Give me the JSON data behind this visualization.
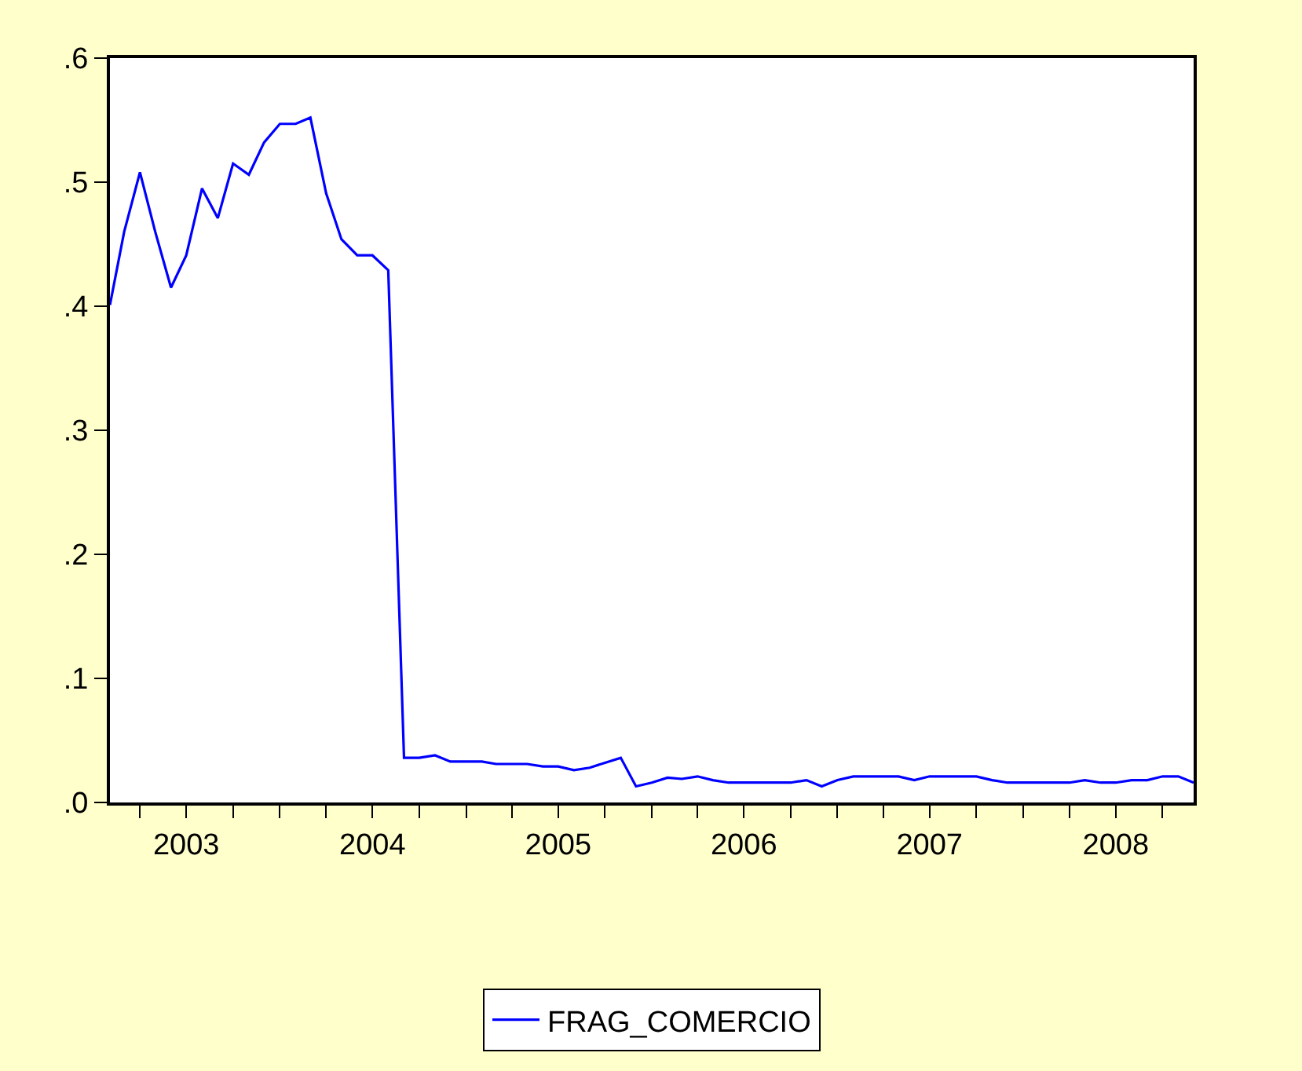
{
  "chart_data": {
    "type": "line",
    "legend": "bottom",
    "marker": "none",
    "line_style": "solid",
    "x": [
      "2003-02",
      "2003-03",
      "2003-04",
      "2003-05",
      "2003-06",
      "2003-07",
      "2003-08",
      "2003-09",
      "2003-10",
      "2003-11",
      "2003-12",
      "2004-01",
      "2004-02",
      "2004-03",
      "2004-04",
      "2004-05",
      "2004-06",
      "2004-07",
      "2004-08",
      "2004-09",
      "2004-10",
      "2004-11",
      "2004-12",
      "2005-01",
      "2005-02",
      "2005-03",
      "2005-04",
      "2005-05",
      "2005-06",
      "2005-07",
      "2005-08",
      "2005-09",
      "2005-10",
      "2005-11",
      "2005-12",
      "2006-01",
      "2006-02",
      "2006-03",
      "2006-04",
      "2006-05",
      "2006-06",
      "2006-07",
      "2006-08",
      "2006-09",
      "2006-10",
      "2006-11",
      "2006-12",
      "2007-01",
      "2007-02",
      "2007-03",
      "2007-04",
      "2007-05",
      "2007-06",
      "2007-07",
      "2007-08",
      "2007-09",
      "2007-10",
      "2007-11",
      "2007-12",
      "2008-01",
      "2008-02",
      "2008-03",
      "2008-04",
      "2008-05",
      "2008-06",
      "2008-07",
      "2008-08",
      "2008-09",
      "2008-10",
      "2008-11",
      "2008-12"
    ],
    "series": [
      {
        "name": "FRAG_COMERCIO",
        "color": "#0000ff",
        "values": [
          0.401,
          0.46,
          0.508,
          0.46,
          0.415,
          0.441,
          0.495,
          0.471,
          0.515,
          0.506,
          0.532,
          0.547,
          0.547,
          0.552,
          0.491,
          0.454,
          0.441,
          0.441,
          0.429,
          0.036,
          0.036,
          0.038,
          0.033,
          0.033,
          0.033,
          0.031,
          0.031,
          0.031,
          0.029,
          0.029,
          0.026,
          0.028,
          0.032,
          0.036,
          0.013,
          0.016,
          0.02,
          0.019,
          0.021,
          0.018,
          0.016,
          0.016,
          0.016,
          0.016,
          0.016,
          0.018,
          0.013,
          0.018,
          0.021,
          0.021,
          0.021,
          0.021,
          0.018,
          0.021,
          0.021,
          0.021,
          0.021,
          0.018,
          0.016,
          0.016,
          0.016,
          0.016,
          0.016,
          0.018,
          0.016,
          0.016,
          0.018,
          0.018,
          0.021,
          0.021,
          0.016
        ]
      }
    ],
    "xlim": [
      "2003-02",
      "2008-12"
    ],
    "xticks": [
      {
        "value": "2003-04",
        "label": null
      },
      {
        "value": "2003-07",
        "label": "2003"
      },
      {
        "value": "2003-10",
        "label": null
      },
      {
        "value": "2004-01",
        "label": null
      },
      {
        "value": "2004-04",
        "label": null
      },
      {
        "value": "2004-07",
        "label": "2004"
      },
      {
        "value": "2004-10",
        "label": null
      },
      {
        "value": "2005-01",
        "label": null
      },
      {
        "value": "2005-04",
        "label": null
      },
      {
        "value": "2005-07",
        "label": "2005"
      },
      {
        "value": "2005-10",
        "label": null
      },
      {
        "value": "2006-01",
        "label": null
      },
      {
        "value": "2006-04",
        "label": null
      },
      {
        "value": "2006-07",
        "label": "2006"
      },
      {
        "value": "2006-10",
        "label": null
      },
      {
        "value": "2007-01",
        "label": null
      },
      {
        "value": "2007-04",
        "label": null
      },
      {
        "value": "2007-07",
        "label": "2007"
      },
      {
        "value": "2007-10",
        "label": null
      },
      {
        "value": "2008-01",
        "label": null
      },
      {
        "value": "2008-04",
        "label": null
      },
      {
        "value": "2008-07",
        "label": "2008"
      },
      {
        "value": "2008-10",
        "label": null
      }
    ],
    "ylim": [
      0,
      0.6
    ],
    "yticks": [
      {
        "value": 0,
        "label": ".0"
      },
      {
        "value": 0.1,
        "label": ".1"
      },
      {
        "value": 0.2,
        "label": ".2"
      },
      {
        "value": 0.3,
        "label": ".3"
      },
      {
        "value": 0.4,
        "label": ".4"
      },
      {
        "value": 0.5,
        "label": ".5"
      },
      {
        "value": 0.6,
        "label": ".6"
      }
    ]
  }
}
